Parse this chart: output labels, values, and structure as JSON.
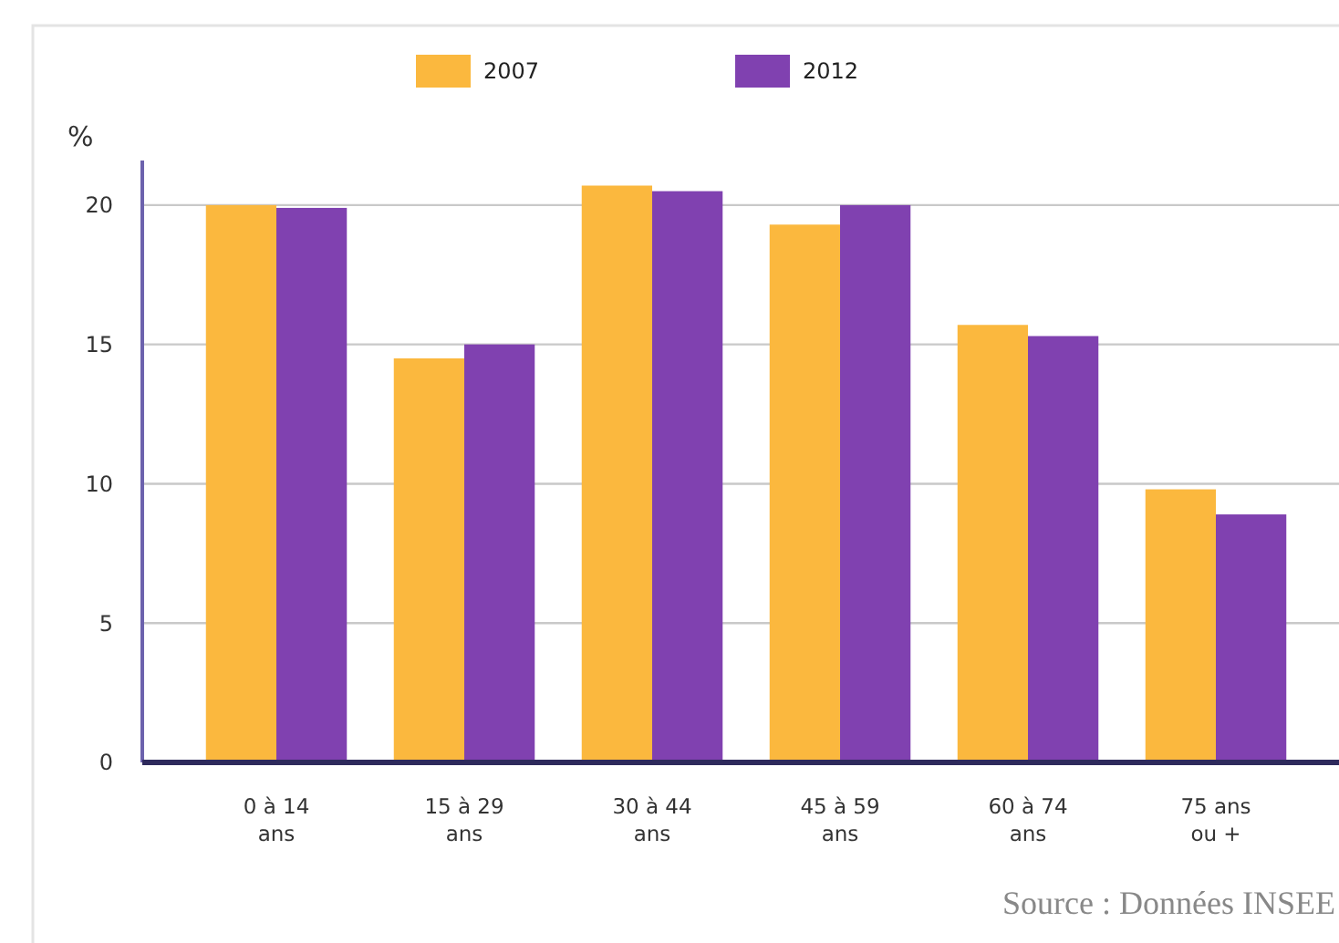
{
  "chart_data": {
    "type": "bar",
    "categories": [
      "0 à 14\nans",
      "15 à 29\nans",
      "30 à 44\nans",
      "45 à 59\nans",
      "60 à 74\nans",
      "75 ans\nou +"
    ],
    "series": [
      {
        "name": "2007",
        "color": "#fbb83e",
        "values": [
          20.0,
          14.5,
          20.7,
          19.3,
          15.7,
          9.8
        ]
      },
      {
        "name": "2012",
        "color": "#8041b0",
        "values": [
          19.9,
          15.0,
          20.5,
          20.0,
          15.3,
          8.9
        ]
      }
    ],
    "ylabel": "%",
    "ylim": [
      0,
      21.6
    ],
    "yticks": [
      0,
      5,
      10,
      15,
      20
    ],
    "grid": "y",
    "legend": "top",
    "annotations": [
      "Source : Données INSEE"
    ]
  }
}
